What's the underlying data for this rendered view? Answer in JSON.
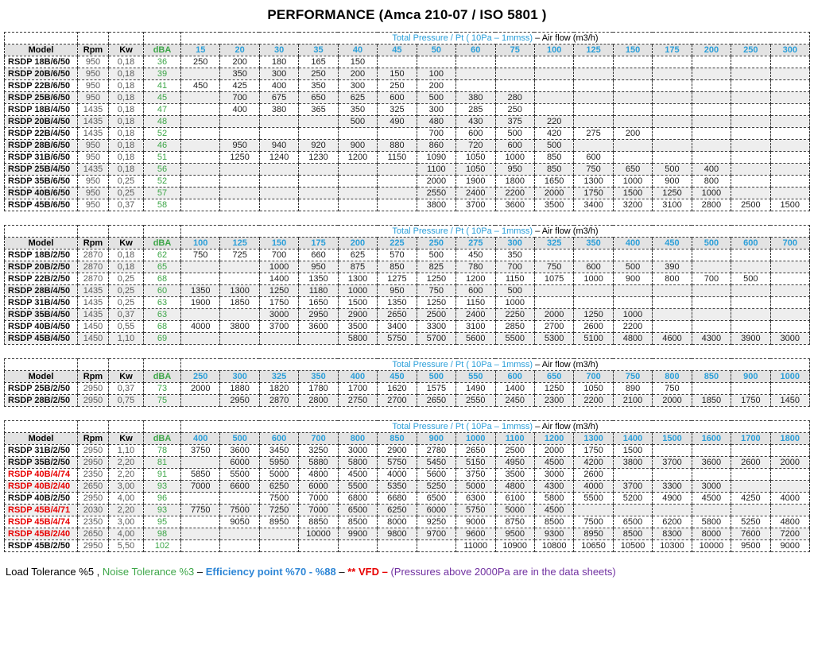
{
  "title": "PERFORMANCE (Amca 210-07 / ISO 5801 )",
  "colors": {
    "pressure_header_blue": "#2B9FD9",
    "dba_green": "#3DA648",
    "vfd_model_red": "#E80000",
    "footnote_purple": "#7030A0",
    "stripe_gray": "#EEEEEE",
    "header_row_gray": "#E3E3E3"
  },
  "band": {
    "blue": "Total Pressure  / Pt ( 10Pa – 1mmss) ",
    "black": "– Air flow (m3/h)"
  },
  "fixed_headers": [
    "Model",
    "Rpm",
    "Kw",
    "dBA"
  ],
  "tables": [
    {
      "pressures": [
        "15",
        "20",
        "30",
        "35",
        "40",
        "45",
        "50",
        "60",
        "75",
        "100",
        "125",
        "150",
        "175",
        "200",
        "250",
        "300"
      ],
      "rows": [
        {
          "model": "RSDP 18B/6/50",
          "red": false,
          "rpm": "950",
          "kw": "0,18",
          "dba": "36",
          "values": [
            "250",
            "200",
            "180",
            "165",
            "150",
            "",
            "",
            "",
            "",
            "",
            "",
            "",
            "",
            "",
            "",
            ""
          ]
        },
        {
          "model": "RSDP 20B/6/50",
          "red": false,
          "rpm": "950",
          "kw": "0,18",
          "dba": "39",
          "values": [
            "",
            "350",
            "300",
            "250",
            "200",
            "150",
            "100",
            "",
            "",
            "",
            "",
            "",
            "",
            "",
            "",
            ""
          ]
        },
        {
          "model": "RSDP 22B/6/50",
          "red": false,
          "rpm": "950",
          "kw": "0,18",
          "dba": "41",
          "values": [
            "450",
            "425",
            "400",
            "350",
            "300",
            "250",
            "200",
            "",
            "",
            "",
            "",
            "",
            "",
            "",
            "",
            ""
          ]
        },
        {
          "model": "RSDP 25B/6/50",
          "red": false,
          "rpm": "950",
          "kw": "0,18",
          "dba": "45",
          "values": [
            "",
            "700",
            "675",
            "650",
            "625",
            "600",
            "500",
            "380",
            "280",
            "",
            "",
            "",
            "",
            "",
            "",
            ""
          ]
        },
        {
          "model": "RSDP 18B/4/50",
          "red": false,
          "rpm": "1435",
          "kw": "0,18",
          "dba": "47",
          "values": [
            "",
            "400",
            "380",
            "365",
            "350",
            "325",
            "300",
            "285",
            "250",
            "",
            "",
            "",
            "",
            "",
            "",
            ""
          ]
        },
        {
          "model": "RSDP 20B/4/50",
          "red": false,
          "rpm": "1435",
          "kw": "0,18",
          "dba": "48",
          "values": [
            "",
            "",
            "",
            "",
            "500",
            "490",
            "480",
            "430",
            "375",
            "220",
            "",
            "",
            "",
            "",
            "",
            ""
          ]
        },
        {
          "model": "RSDP 22B/4/50",
          "red": false,
          "rpm": "1435",
          "kw": "0,18",
          "dba": "52",
          "values": [
            "",
            "",
            "",
            "",
            "",
            "",
            "700",
            "600",
            "500",
            "420",
            "275",
            "200",
            "",
            "",
            "",
            ""
          ]
        },
        {
          "model": "RSDP 28B/6/50",
          "red": false,
          "rpm": "950",
          "kw": "0,18",
          "dba": "46",
          "values": [
            "",
            "950",
            "940",
            "920",
            "900",
            "880",
            "860",
            "720",
            "600",
            "500",
            "",
            "",
            "",
            "",
            "",
            ""
          ]
        },
        {
          "model": "RSDP 31B/6/50",
          "red": false,
          "rpm": "950",
          "kw": "0,18",
          "dba": "51",
          "values": [
            "",
            "1250",
            "1240",
            "1230",
            "1200",
            "1150",
            "1090",
            "1050",
            "1000",
            "850",
            "600",
            "",
            "",
            "",
            "",
            ""
          ]
        },
        {
          "model": "RSDP 25B/4/50",
          "red": false,
          "rpm": "1435",
          "kw": "0,18",
          "dba": "56",
          "values": [
            "",
            "",
            "",
            "",
            "",
            "",
            "1100",
            "1050",
            "950",
            "850",
            "750",
            "650",
            "500",
            "400",
            "",
            ""
          ]
        },
        {
          "model": "RSDP 35B/6/50",
          "red": false,
          "rpm": "950",
          "kw": "0,25",
          "dba": "52",
          "values": [
            "",
            "",
            "",
            "",
            "",
            "",
            "2000",
            "1900",
            "1800",
            "1650",
            "1300",
            "1000",
            "900",
            "800",
            "",
            ""
          ]
        },
        {
          "model": "RSDP 40B/6/50",
          "red": false,
          "rpm": "950",
          "kw": "0,25",
          "dba": "57",
          "values": [
            "",
            "",
            "",
            "",
            "",
            "",
            "2550",
            "2400",
            "2200",
            "2000",
            "1750",
            "1500",
            "1250",
            "1000",
            "",
            ""
          ]
        },
        {
          "model": "RSDP 45B/6/50",
          "red": false,
          "rpm": "950",
          "kw": "0,37",
          "dba": "58",
          "values": [
            "",
            "",
            "",
            "",
            "",
            "",
            "3800",
            "3700",
            "3600",
            "3500",
            "3400",
            "3200",
            "3100",
            "2800",
            "2500",
            "1500"
          ]
        }
      ]
    },
    {
      "pressures": [
        "100",
        "125",
        "150",
        "175",
        "200",
        "225",
        "250",
        "275",
        "300",
        "325",
        "350",
        "400",
        "450",
        "500",
        "600",
        "700"
      ],
      "rows": [
        {
          "model": "RSDP 18B/2/50",
          "red": false,
          "rpm": "2870",
          "kw": "0,18",
          "dba": "62",
          "values": [
            "750",
            "725",
            "700",
            "660",
            "625",
            "570",
            "500",
            "450",
            "350",
            "",
            "",
            "",
            "",
            "",
            "",
            ""
          ]
        },
        {
          "model": "RSDP 20B/2/50",
          "red": false,
          "rpm": "2870",
          "kw": "0,18",
          "dba": "65",
          "values": [
            "",
            "",
            "1000",
            "950",
            "875",
            "850",
            "825",
            "780",
            "700",
            "750",
            "600",
            "500",
            "390",
            "",
            "",
            ""
          ]
        },
        {
          "model": "RSDP 22B/2/50",
          "red": false,
          "rpm": "2870",
          "kw": "0,25",
          "dba": "68",
          "values": [
            "",
            "",
            "1400",
            "1350",
            "1300",
            "1275",
            "1250",
            "1200",
            "1150",
            "1075",
            "1000",
            "900",
            "800",
            "700",
            "500",
            ""
          ]
        },
        {
          "model": "RSDP 28B/4/50",
          "red": false,
          "rpm": "1435",
          "kw": "0,25",
          "dba": "60",
          "values": [
            "1350",
            "1300",
            "1250",
            "1180",
            "1000",
            "950",
            "750",
            "600",
            "500",
            "",
            "",
            "",
            "",
            "",
            "",
            ""
          ]
        },
        {
          "model": "RSDP 31B/4/50",
          "red": false,
          "rpm": "1435",
          "kw": "0,25",
          "dba": "63",
          "values": [
            "1900",
            "1850",
            "1750",
            "1650",
            "1500",
            "1350",
            "1250",
            "1150",
            "1000",
            "",
            "",
            "",
            "",
            "",
            "",
            ""
          ]
        },
        {
          "model": "RSDP 35B/4/50",
          "red": false,
          "rpm": "1435",
          "kw": "0,37",
          "dba": "63",
          "values": [
            "",
            "",
            "3000",
            "2950",
            "2900",
            "2650",
            "2500",
            "2400",
            "2250",
            "2000",
            "1250",
            "1000",
            "",
            "",
            "",
            ""
          ]
        },
        {
          "model": "RSDP 40B/4/50",
          "red": false,
          "rpm": "1450",
          "kw": "0,55",
          "dba": "68",
          "values": [
            "4000",
            "3800",
            "3700",
            "3600",
            "3500",
            "3400",
            "3300",
            "3100",
            "2850",
            "2700",
            "2600",
            "2200",
            "",
            "",
            "",
            ""
          ]
        },
        {
          "model": "RSDP 45B/4/50",
          "red": false,
          "rpm": "1450",
          "kw": "1,10",
          "dba": "69",
          "values": [
            "",
            "",
            "",
            "",
            "5800",
            "5750",
            "5700",
            "5600",
            "5500",
            "5300",
            "5100",
            "4800",
            "4600",
            "4300",
            "3900",
            "3000"
          ]
        }
      ]
    },
    {
      "pressures": [
        "250",
        "300",
        "325",
        "350",
        "400",
        "450",
        "500",
        "550",
        "600",
        "650",
        "700",
        "750",
        "800",
        "850",
        "900",
        "1000"
      ],
      "rows": [
        {
          "model": "RSDP 25B/2/50",
          "red": false,
          "rpm": "2950",
          "kw": "0,37",
          "dba": "73",
          "values": [
            "2000",
            "1880",
            "1820",
            "1780",
            "1700",
            "1620",
            "1575",
            "1490",
            "1400",
            "1250",
            "1050",
            "890",
            "750",
            "",
            "",
            ""
          ]
        },
        {
          "model": "RSDP 28B/2/50",
          "red": false,
          "rpm": "2950",
          "kw": "0,75",
          "dba": "75",
          "values": [
            "",
            "2950",
            "2870",
            "2800",
            "2750",
            "2700",
            "2650",
            "2550",
            "2450",
            "2300",
            "2200",
            "2100",
            "2000",
            "1850",
            "1750",
            "1450"
          ]
        }
      ]
    },
    {
      "pressures": [
        "400",
        "500",
        "600",
        "700",
        "800",
        "850",
        "900",
        "1000",
        "1100",
        "1200",
        "1300",
        "1400",
        "1500",
        "1600",
        "1700",
        "1800"
      ],
      "rows": [
        {
          "model": "RSDP 31B/2/50",
          "red": false,
          "rpm": "2950",
          "kw": "1,10",
          "dba": "78",
          "values": [
            "3750",
            "3600",
            "3450",
            "3250",
            "3000",
            "2900",
            "2780",
            "2650",
            "2500",
            "2000",
            "1750",
            "1500",
            "",
            "",
            "",
            ""
          ]
        },
        {
          "model": "RSDP 35B/2/50",
          "red": false,
          "rpm": "2950",
          "kw": "2,20",
          "dba": "81",
          "values": [
            "",
            "6000",
            "5950",
            "5880",
            "5800",
            "5750",
            "5450",
            "5150",
            "4950",
            "4500",
            "4200",
            "3800",
            "3700",
            "3600",
            "2600",
            "2000"
          ]
        },
        {
          "model": "RSDP 40B/4/74",
          "red": true,
          "rpm": "2350",
          "kw": "2,20",
          "dba": "91",
          "values": [
            "5850",
            "5500",
            "5000",
            "4800",
            "4500",
            "4000",
            "5600",
            "3750",
            "3500",
            "3000",
            "2600",
            "",
            "",
            "",
            "",
            ""
          ]
        },
        {
          "model": "RSDP 40B/2/40",
          "red": true,
          "rpm": "2650",
          "kw": "3,00",
          "dba": "93",
          "values": [
            "7000",
            "6600",
            "6250",
            "6000",
            "5500",
            "5350",
            "5250",
            "5000",
            "4800",
            "4300",
            "4000",
            "3700",
            "3300",
            "3000",
            "",
            ""
          ]
        },
        {
          "model": "RSDP 40B/2/50",
          "red": false,
          "rpm": "2950",
          "kw": "4,00",
          "dba": "96",
          "values": [
            "",
            "",
            "7500",
            "7000",
            "6800",
            "6680",
            "6500",
            "6300",
            "6100",
            "5800",
            "5500",
            "5200",
            "4900",
            "4500",
            "4250",
            "4000"
          ]
        },
        {
          "model": "RSDP 45B/4/71",
          "red": true,
          "rpm": "2030",
          "kw": "2,20",
          "dba": "93",
          "values": [
            "7750",
            "7500",
            "7250",
            "7000",
            "6500",
            "6250",
            "6000",
            "5750",
            "5000",
            "4500",
            "",
            "",
            "",
            "",
            "",
            ""
          ]
        },
        {
          "model": "RSDP 45B/4/74",
          "red": true,
          "rpm": "2350",
          "kw": "3,00",
          "dba": "95",
          "values": [
            "",
            "9050",
            "8950",
            "8850",
            "8500",
            "8000",
            "9250",
            "9000",
            "8750",
            "8500",
            "7500",
            "6500",
            "6200",
            "5800",
            "5250",
            "4800"
          ]
        },
        {
          "model": "RSDP 45B/2/40",
          "red": true,
          "rpm": "2650",
          "kw": "4,00",
          "dba": "98",
          "values": [
            "",
            "",
            "",
            "10000",
            "9900",
            "9800",
            "9700",
            "9600",
            "9500",
            "9300",
            "8950",
            "8500",
            "8300",
            "8000",
            "7600",
            "7200"
          ]
        },
        {
          "model": "RSDP 45B/2/50",
          "red": false,
          "rpm": "2950",
          "kw": "5,50",
          "dba": "102",
          "values": [
            "",
            "",
            "",
            "",
            "",
            "",
            "",
            "11000",
            "10900",
            "10800",
            "10650",
            "10500",
            "10300",
            "10000",
            "9500",
            "9000"
          ]
        }
      ]
    }
  ],
  "footer": {
    "segments": [
      {
        "text": "Load Tolerance %5 ,  ",
        "style": "plain"
      },
      {
        "text": "Noise Tolerance %3",
        "style": "green"
      },
      {
        "text": " –  ",
        "style": "plain"
      },
      {
        "text": "Efficiency point %70 - %88",
        "style": "blue"
      },
      {
        "text": " – ",
        "style": "plain"
      },
      {
        "text": "** VFD",
        "style": "red"
      },
      {
        "text": " – ",
        "style": "red"
      },
      {
        "text": "(Pressures above 2000Pa are in the data sheets)",
        "style": "purple"
      }
    ]
  }
}
